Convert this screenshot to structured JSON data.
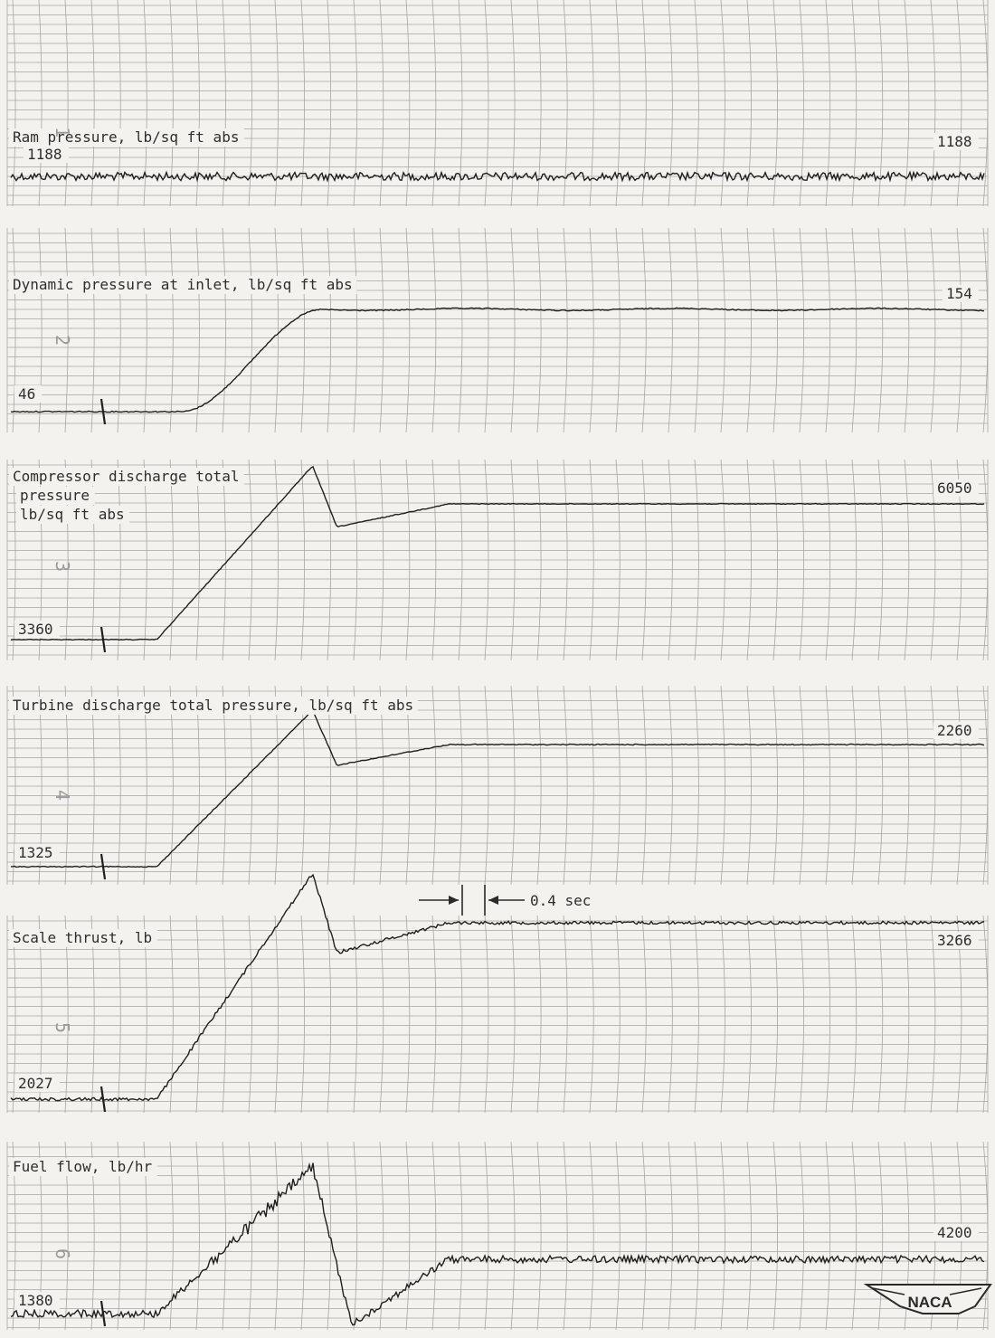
{
  "chart_data": {
    "type": "line",
    "panels": [
      {
        "id": 1,
        "label": "Ram pressure, lb/sq ft abs",
        "trace_number": "1",
        "start_value_label": "1188",
        "end_value_label": "1188",
        "shape": "flat",
        "noise": 0.9
      },
      {
        "id": 2,
        "label": "Dynamic pressure at inlet, lb/sq ft abs",
        "trace_number": "2",
        "start_value_label": "46",
        "end_value_label": "154",
        "shape": "ramp",
        "noise": 0.12
      },
      {
        "id": 3,
        "label_lines": [
          "Compressor discharge total",
          "pressure",
          "lb/sq ft abs"
        ],
        "trace_number": "3",
        "start_value_label": "3360",
        "end_value_label": "6050",
        "shape": "overshoot",
        "noise": 0.08
      },
      {
        "id": 4,
        "label": "Turbine discharge total pressure, lb/sq ft abs",
        "trace_number": "4",
        "start_value_label": "1325",
        "end_value_label": "2260",
        "shape": "overshoot",
        "noise": 0.1
      },
      {
        "id": 5,
        "label": "Scale thrust, lb",
        "trace_number": "5",
        "start_value_label": "2027",
        "end_value_label": "3266",
        "shape": "overshoot",
        "noise": 0.35
      },
      {
        "id": 6,
        "label": "Fuel flow, lb/hr",
        "trace_number": "6",
        "start_value_label": "1380",
        "end_value_label": "4200",
        "shape": "fuel",
        "noise": 0.8
      }
    ],
    "time_scale": {
      "label": "0.4 sec"
    }
  },
  "logo": {
    "text": "NACA"
  }
}
